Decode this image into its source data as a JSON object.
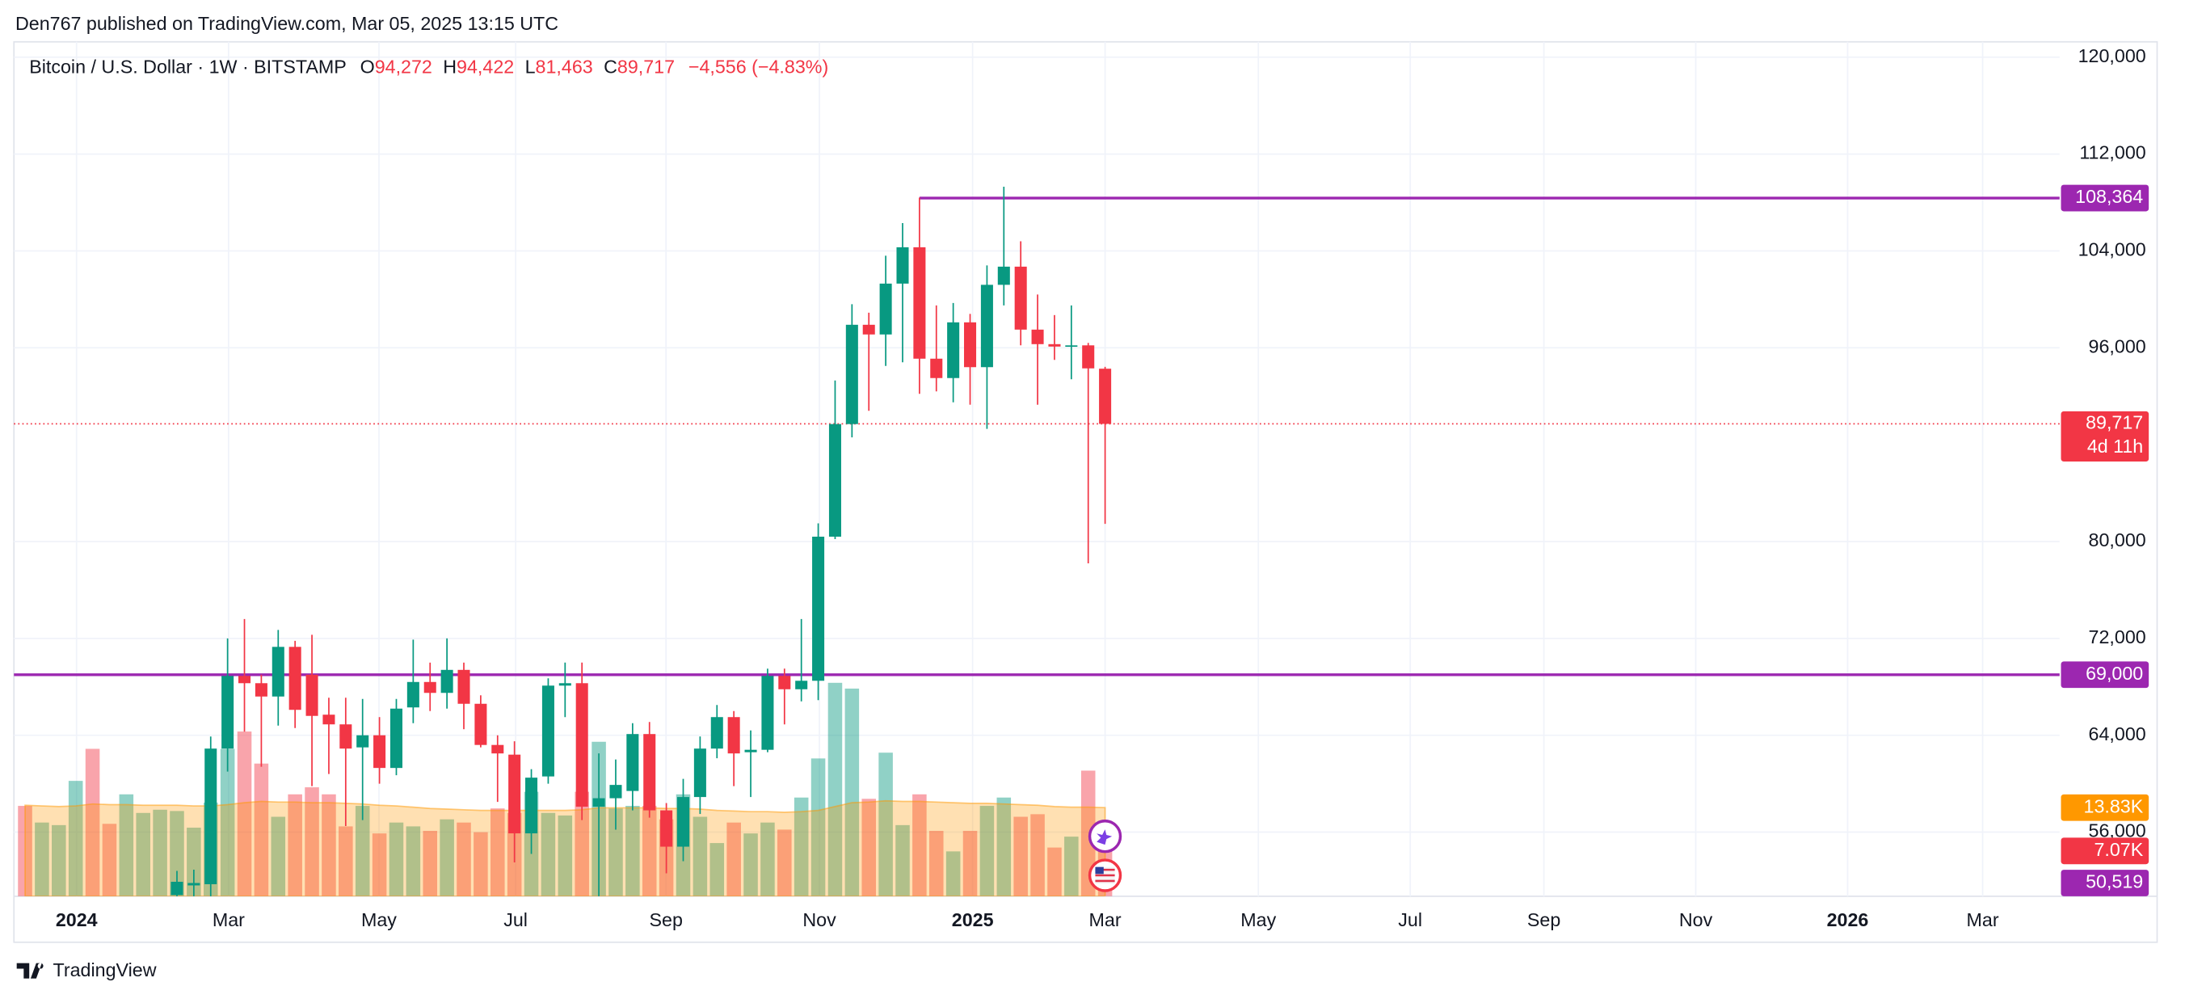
{
  "header": {
    "publisher": "Den767 published on TradingView.com, Mar 05, 2025 13:15 UTC",
    "brand": "TradingView"
  },
  "chart_data": {
    "type": "candlestick",
    "title": "Bitcoin / U.S. Dollar · 1W · BITSTAMP",
    "ohlc_legend": {
      "open_key": "O",
      "open": "94,272",
      "high_key": "H",
      "high": "94,422",
      "low_key": "L",
      "low": "81,463",
      "close_key": "C",
      "close": "89,717",
      "change": "−4,556 (−4.83%)"
    },
    "xlim": [
      -0.66,
      120.56
    ],
    "xticks": [
      {
        "value": 3.05,
        "label": "2024"
      },
      {
        "value": 12.06,
        "label": "Mar"
      },
      {
        "value": 20.97,
        "label": "May"
      },
      {
        "value": 29.07,
        "label": "Jul"
      },
      {
        "value": 37.98,
        "label": "Sep"
      },
      {
        "value": 47.07,
        "label": "Nov"
      },
      {
        "value": 56.15,
        "label": "2025"
      },
      {
        "value": 64.0,
        "label": "Mar"
      },
      {
        "value": 73.08,
        "label": "May"
      },
      {
        "value": 82.08,
        "label": "Jul"
      },
      {
        "value": 90.0,
        "label": "Sep"
      },
      {
        "value": 99.0,
        "label": "Nov"
      },
      {
        "value": 108.0,
        "label": "2026"
      },
      {
        "value": 116.0,
        "label": "Mar"
      }
    ],
    "ylim": [
      50705,
      121266
    ],
    "yticks": [
      {
        "value": 56000,
        "label": "56,000"
      },
      {
        "value": 64000,
        "label": "64,000"
      },
      {
        "value": 72000,
        "label": "72,000"
      },
      {
        "value": 80000,
        "label": "80,000"
      },
      {
        "value": 96000,
        "label": "96,000"
      },
      {
        "value": 104000,
        "label": "104,000"
      },
      {
        "value": 112000,
        "label": "112,000"
      },
      {
        "value": 120000,
        "label": "120,000"
      }
    ],
    "grid": true,
    "up_color": "#089981",
    "down_color": "#f23645",
    "candles": {
      "open": [
        null,
        null,
        null,
        null,
        null,
        null,
        null,
        null,
        null,
        50800,
        51600,
        51700,
        62900,
        68900,
        68300,
        67200,
        71300,
        69000,
        65700,
        64900,
        63000,
        64000,
        61300,
        66300,
        68400,
        67500,
        69400,
        66600,
        63200,
        62400,
        55900,
        60600,
        68100,
        68300,
        58100,
        58800,
        59400,
        64100,
        57800,
        54800,
        58900,
        62900,
        65500,
        62600,
        62800,
        68900,
        67800,
        68500,
        80400,
        89700,
        97900,
        97100,
        101300,
        104300,
        95100,
        93500,
        98100,
        94400,
        101200,
        102700,
        97500,
        96300,
        96100,
        96200,
        94272
      ],
      "high": [
        null,
        null,
        null,
        null,
        null,
        null,
        null,
        null,
        null,
        52800,
        52900,
        63900,
        72000,
        73600,
        69000,
        72700,
        71800,
        72300,
        67100,
        67100,
        67000,
        65500,
        67000,
        71900,
        70000,
        72000,
        70000,
        67300,
        64000,
        63500,
        61200,
        68700,
        70000,
        70000,
        62500,
        62000,
        65000,
        65100,
        58400,
        60400,
        63900,
        66500,
        66000,
        64400,
        69500,
        69500,
        73600,
        81500,
        93300,
        99600,
        98900,
        103600,
        106300,
        108400,
        99500,
        99700,
        98800,
        102800,
        109300,
        104800,
        100400,
        98700,
        99500,
        96400,
        94422
      ],
      "low": [
        null,
        null,
        null,
        null,
        null,
        null,
        null,
        null,
        null,
        50600,
        50600,
        50500,
        61000,
        64300,
        61400,
        64800,
        64600,
        59800,
        60800,
        56500,
        57000,
        60000,
        60700,
        65000,
        66000,
        66200,
        64500,
        63000,
        58500,
        53500,
        54200,
        60000,
        65500,
        57000,
        49100,
        56200,
        57800,
        57200,
        52600,
        53600,
        57500,
        62100,
        59800,
        58900,
        62600,
        64900,
        66800,
        66900,
        80200,
        88600,
        90800,
        94500,
        94800,
        92200,
        92400,
        91500,
        91300,
        89300,
        99500,
        96200,
        91300,
        95000,
        93400,
        78200,
        81463
      ],
      "close": [
        null,
        null,
        null,
        null,
        null,
        null,
        null,
        null,
        null,
        51900,
        51800,
        62900,
        68900,
        68300,
        67200,
        71300,
        66100,
        65600,
        64900,
        62900,
        64000,
        61300,
        66200,
        68400,
        67500,
        69400,
        66600,
        63200,
        62500,
        55900,
        60500,
        68100,
        68300,
        58100,
        58800,
        59900,
        64100,
        57800,
        54800,
        58900,
        62900,
        65500,
        62500,
        62800,
        68900,
        67800,
        68500,
        80400,
        89700,
        97900,
        97100,
        101300,
        104300,
        95100,
        93500,
        98100,
        94400,
        101200,
        102700,
        97500,
        96300,
        96100,
        96200,
        94300,
        89717
      ]
    },
    "volume_ylim": [
      0,
      133.3
    ],
    "volumes": [
      14.1,
      11.5,
      11.1,
      18.0,
      23.0,
      11.3,
      15.9,
      13.0,
      13.5,
      13.3,
      10.7,
      14.6,
      23.0,
      25.7,
      20.7,
      12.4,
      15.9,
      17.0,
      15.9,
      10.9,
      14.1,
      9.8,
      11.5,
      10.9,
      10.2,
      12.0,
      11.5,
      10.0,
      13.7,
      13.0,
      16.3,
      13.0,
      12.6,
      16.3,
      24.1,
      13.7,
      14.1,
      14.1,
      12.0,
      15.9,
      12.4,
      8.3,
      11.5,
      9.8,
      11.5,
      10.4,
      15.4,
      21.5,
      33.3,
      32.4,
      15.2,
      22.4,
      11.1,
      15.9,
      10.2,
      7.0,
      10.2,
      14.1,
      15.4,
      12.4,
      12.8,
      7.6,
      9.3,
      19.6,
      7.07
    ],
    "volume_direction": [
      "down",
      "up",
      "up",
      "up",
      "down",
      "down",
      "up",
      "up",
      "up",
      "up",
      "up",
      "up",
      "up",
      "down",
      "down",
      "up",
      "down",
      "down",
      "down",
      "down",
      "up",
      "down",
      "up",
      "up",
      "down",
      "up",
      "down",
      "down",
      "down",
      "down",
      "up",
      "up",
      "up",
      "down",
      "up",
      "up",
      "up",
      "down",
      "down",
      "up",
      "up",
      "up",
      "down",
      "up",
      "up",
      "down",
      "up",
      "up",
      "up",
      "up",
      "down",
      "up",
      "up",
      "down",
      "down",
      "up",
      "down",
      "up",
      "up",
      "down",
      "down",
      "down",
      "up",
      "down",
      "down"
    ],
    "volume_up_color": "rgba(8,153,129,0.45)",
    "volume_down_color": "rgba(242,54,69,0.45)",
    "volume_ma": [
      14.2,
      14.1,
      14.0,
      14.1,
      14.4,
      14.3,
      14.3,
      14.2,
      14.2,
      14.2,
      14.1,
      14.1,
      14.3,
      14.6,
      14.8,
      14.7,
      14.7,
      14.6,
      14.6,
      14.5,
      14.4,
      14.2,
      14.1,
      13.9,
      13.7,
      13.6,
      13.5,
      13.4,
      13.4,
      13.4,
      13.4,
      13.4,
      13.4,
      13.5,
      13.8,
      13.8,
      13.8,
      13.8,
      13.7,
      13.7,
      13.6,
      13.4,
      13.3,
      13.2,
      13.2,
      13.1,
      13.2,
      13.4,
      14.0,
      14.6,
      14.7,
      14.9,
      14.8,
      14.8,
      14.7,
      14.6,
      14.5,
      14.5,
      14.4,
      14.3,
      14.2,
      14.0,
      13.9,
      13.9,
      13.83
    ],
    "volume_ma_color": "#ff9800",
    "volume_ma_label": {
      "value": 13.83,
      "label": "13.83K"
    },
    "volume_last_label": {
      "value": 7.07,
      "label": "7.07K"
    },
    "extra_label": "50,519",
    "price_lines": [
      {
        "value": 108364,
        "label": "108,364",
        "color": "#9c27b0",
        "start": 53
      },
      {
        "value": 69000,
        "label": "69,000",
        "color": "#9c27b0",
        "start": -0.66
      }
    ],
    "last_price": {
      "value": 89717,
      "label": "89,717",
      "countdown": "4d 11h",
      "color": "#f23645"
    }
  }
}
